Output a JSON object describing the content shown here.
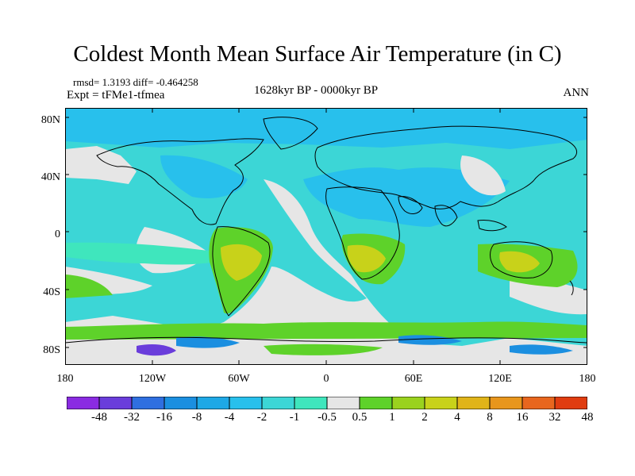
{
  "header": {
    "title": "Coldest Month Mean Surface Air Temperature (in C)",
    "stats": "rmsd= 1.3193 diff= -0.464258",
    "expt": "Expt = tFMe1-tfmea",
    "period": "1628kyr BP - 0000kyr BP",
    "season": "ANN"
  },
  "axes": {
    "lat_labels": [
      "80N",
      "40N",
      "0",
      "40S",
      "80S"
    ],
    "lon_labels": [
      "180",
      "120W",
      "60W",
      "0",
      "60E",
      "120E",
      "180"
    ]
  },
  "colorbar": {
    "colors": [
      "#8a2be2",
      "#6a3ddb",
      "#2f6fe0",
      "#1b8fe0",
      "#1ea8e6",
      "#28c0ec",
      "#3cd6d6",
      "#3fe6bd",
      "#e6e6e6",
      "#5ed22a",
      "#9ad21e",
      "#c8d21a",
      "#e0b419",
      "#e8961c",
      "#e8661e",
      "#e03c10"
    ],
    "labels": [
      "-48",
      "-32",
      "-16",
      "-8",
      "-4",
      "-2",
      "-1",
      "-0.5",
      "0.5",
      "1",
      "2",
      "4",
      "8",
      "16",
      "32",
      "48"
    ]
  }
}
